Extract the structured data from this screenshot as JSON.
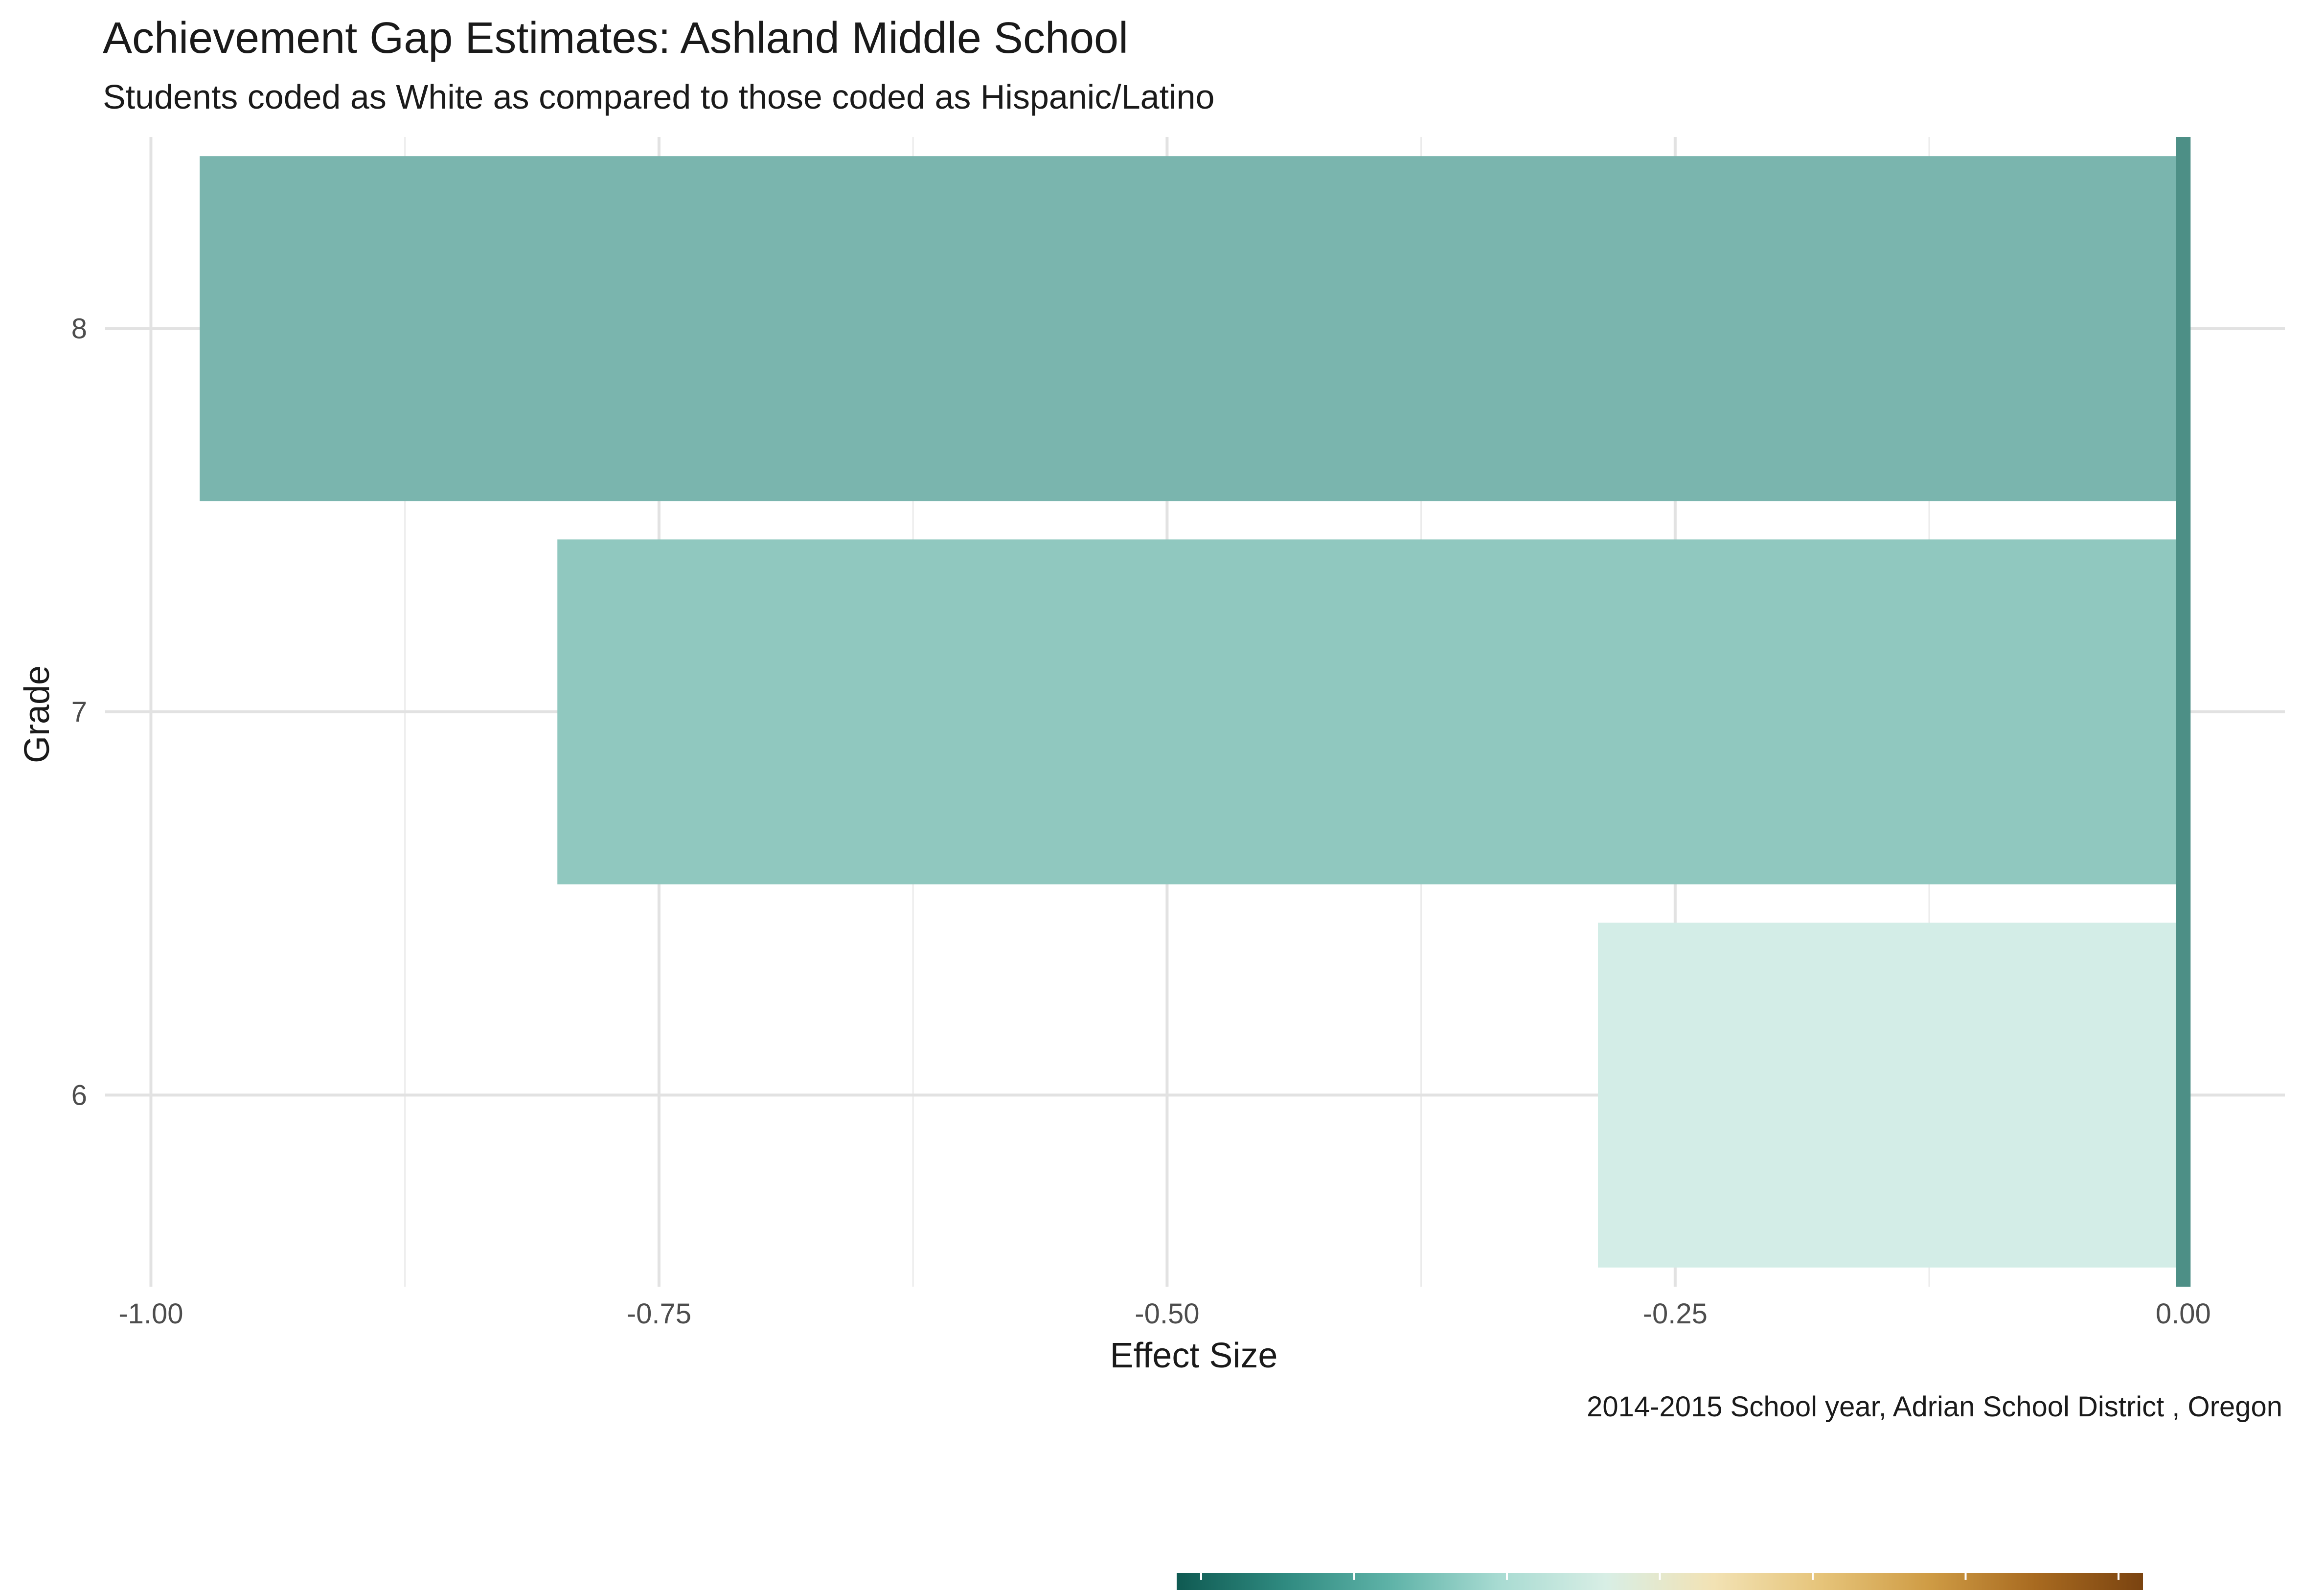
{
  "chart_data": {
    "type": "bar",
    "orientation": "horizontal",
    "title": "Achievement Gap Estimates: Ashland Middle School",
    "subtitle": "Students coded as White as compared to those coded as Hispanic/Latino",
    "xlabel": "Effect Size",
    "ylabel": "Grade",
    "caption": "2014-2015 School year,  Adrian School District , Oregon",
    "categories": [
      "8",
      "7",
      "6"
    ],
    "values": [
      -0.976,
      -0.8,
      -0.288
    ],
    "bar_colors": [
      "#7ab5ae",
      "#90c8bf",
      "#d3ede7"
    ],
    "xlim": [
      -1.0225,
      0.05
    ],
    "x_ticks": [
      -1.0,
      -0.75,
      -0.5,
      -0.25,
      0.0
    ],
    "x_tick_labels": [
      "-1.00",
      "-0.75",
      "-0.50",
      "-0.25",
      "0.00"
    ],
    "x_minor_ticks": [
      -0.875,
      -0.625,
      -0.375,
      -0.125
    ],
    "reference_line": {
      "x": 0.0,
      "color": "#4d8f86"
    },
    "grid": true,
    "legend": {
      "type": "colorbar",
      "placement": "bottom",
      "colors": [
        "#0f5a52",
        "#2f8a80",
        "#5fb3a8",
        "#a8dbd2",
        "#d8eee5",
        "#f2e2b4",
        "#e6c47a",
        "#cf9c45",
        "#a86a20",
        "#7a4310"
      ]
    }
  }
}
